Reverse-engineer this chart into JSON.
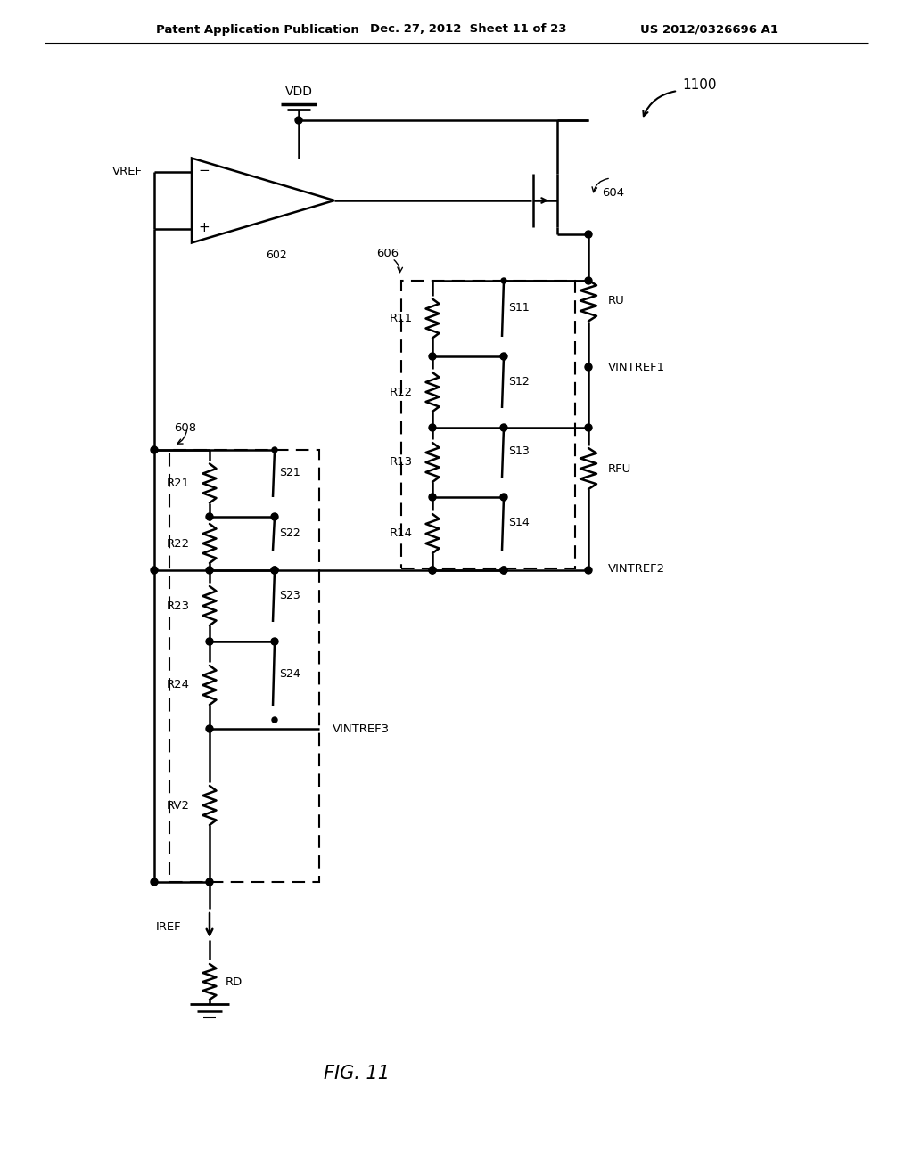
{
  "bg_color": "#ffffff",
  "header_left": "Patent Application Publication",
  "header_mid": "Dec. 27, 2012  Sheet 11 of 23",
  "header_right": "US 2012/0326696 A1",
  "figure_label": "FIG. 11",
  "circuit_label": "1100",
  "lw": 1.8
}
